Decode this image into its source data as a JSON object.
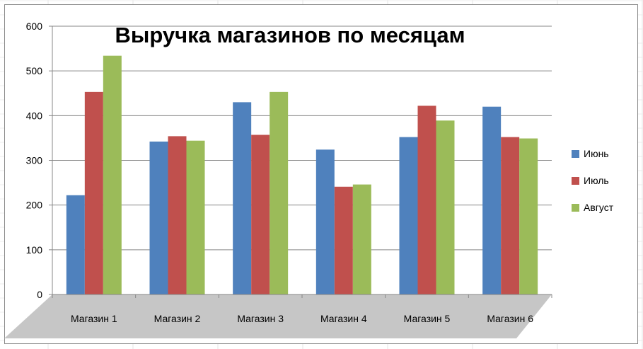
{
  "chart_data": {
    "type": "bar",
    "title": "Выручка магазинов по месяцам",
    "categories": [
      "Магазин 1",
      "Магазин 2",
      "Магазин 3",
      "Магазин 4",
      "Магазин 5",
      "Магазин 6"
    ],
    "series": [
      {
        "name": "Июнь",
        "color": "#4f81bd",
        "values": [
          222,
          342,
          430,
          324,
          352,
          420
        ]
      },
      {
        "name": "Июль",
        "color": "#c0504d",
        "values": [
          453,
          354,
          357,
          241,
          422,
          352
        ]
      },
      {
        "name": "Август",
        "color": "#9bbb59",
        "values": [
          534,
          344,
          453,
          246,
          389,
          349
        ]
      }
    ],
    "ylim": [
      0,
      600
    ],
    "yticks": [
      0,
      100,
      200,
      300,
      400,
      500,
      600
    ],
    "grid": true,
    "legend_position": "right"
  }
}
